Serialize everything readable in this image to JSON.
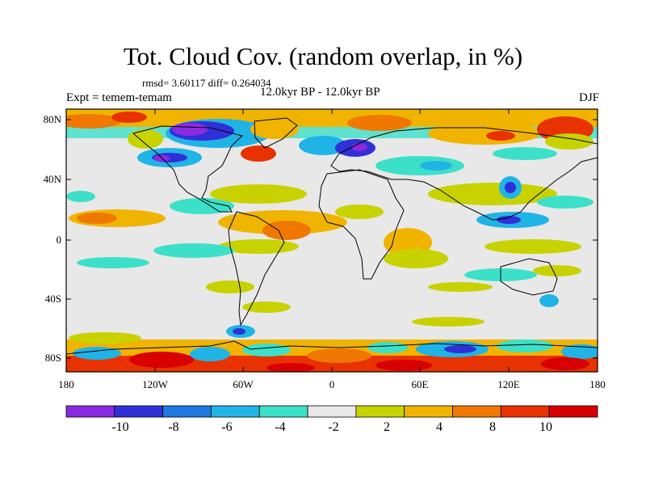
{
  "title": "Tot. Cloud Cov. (random overlap, in %)",
  "stats": "rmsd= 3.60117 diff= 0.264034",
  "experiment": "Expt = temem-temam",
  "period": "12.0kyr BP - 12.0kyr BP",
  "season": "DJF",
  "lat_ticks": [
    "80N",
    "40N",
    "0",
    "40S",
    "80S"
  ],
  "lon_ticks": [
    "180",
    "120W",
    "60W",
    "0",
    "60E",
    "120E",
    "180"
  ],
  "colorbar": {
    "labels": [
      "-10",
      "-8",
      "-6",
      "-4",
      "-2",
      "2",
      "4",
      "8",
      "10"
    ],
    "colors": [
      "#8a2be2",
      "#3030d8",
      "#1e78e0",
      "#20b4e6",
      "#3ce0c8",
      "#e8e8e8",
      "#c8d200",
      "#f0b400",
      "#f07800",
      "#e83200",
      "#d80000"
    ]
  },
  "background_color": "#e8e8e8"
}
